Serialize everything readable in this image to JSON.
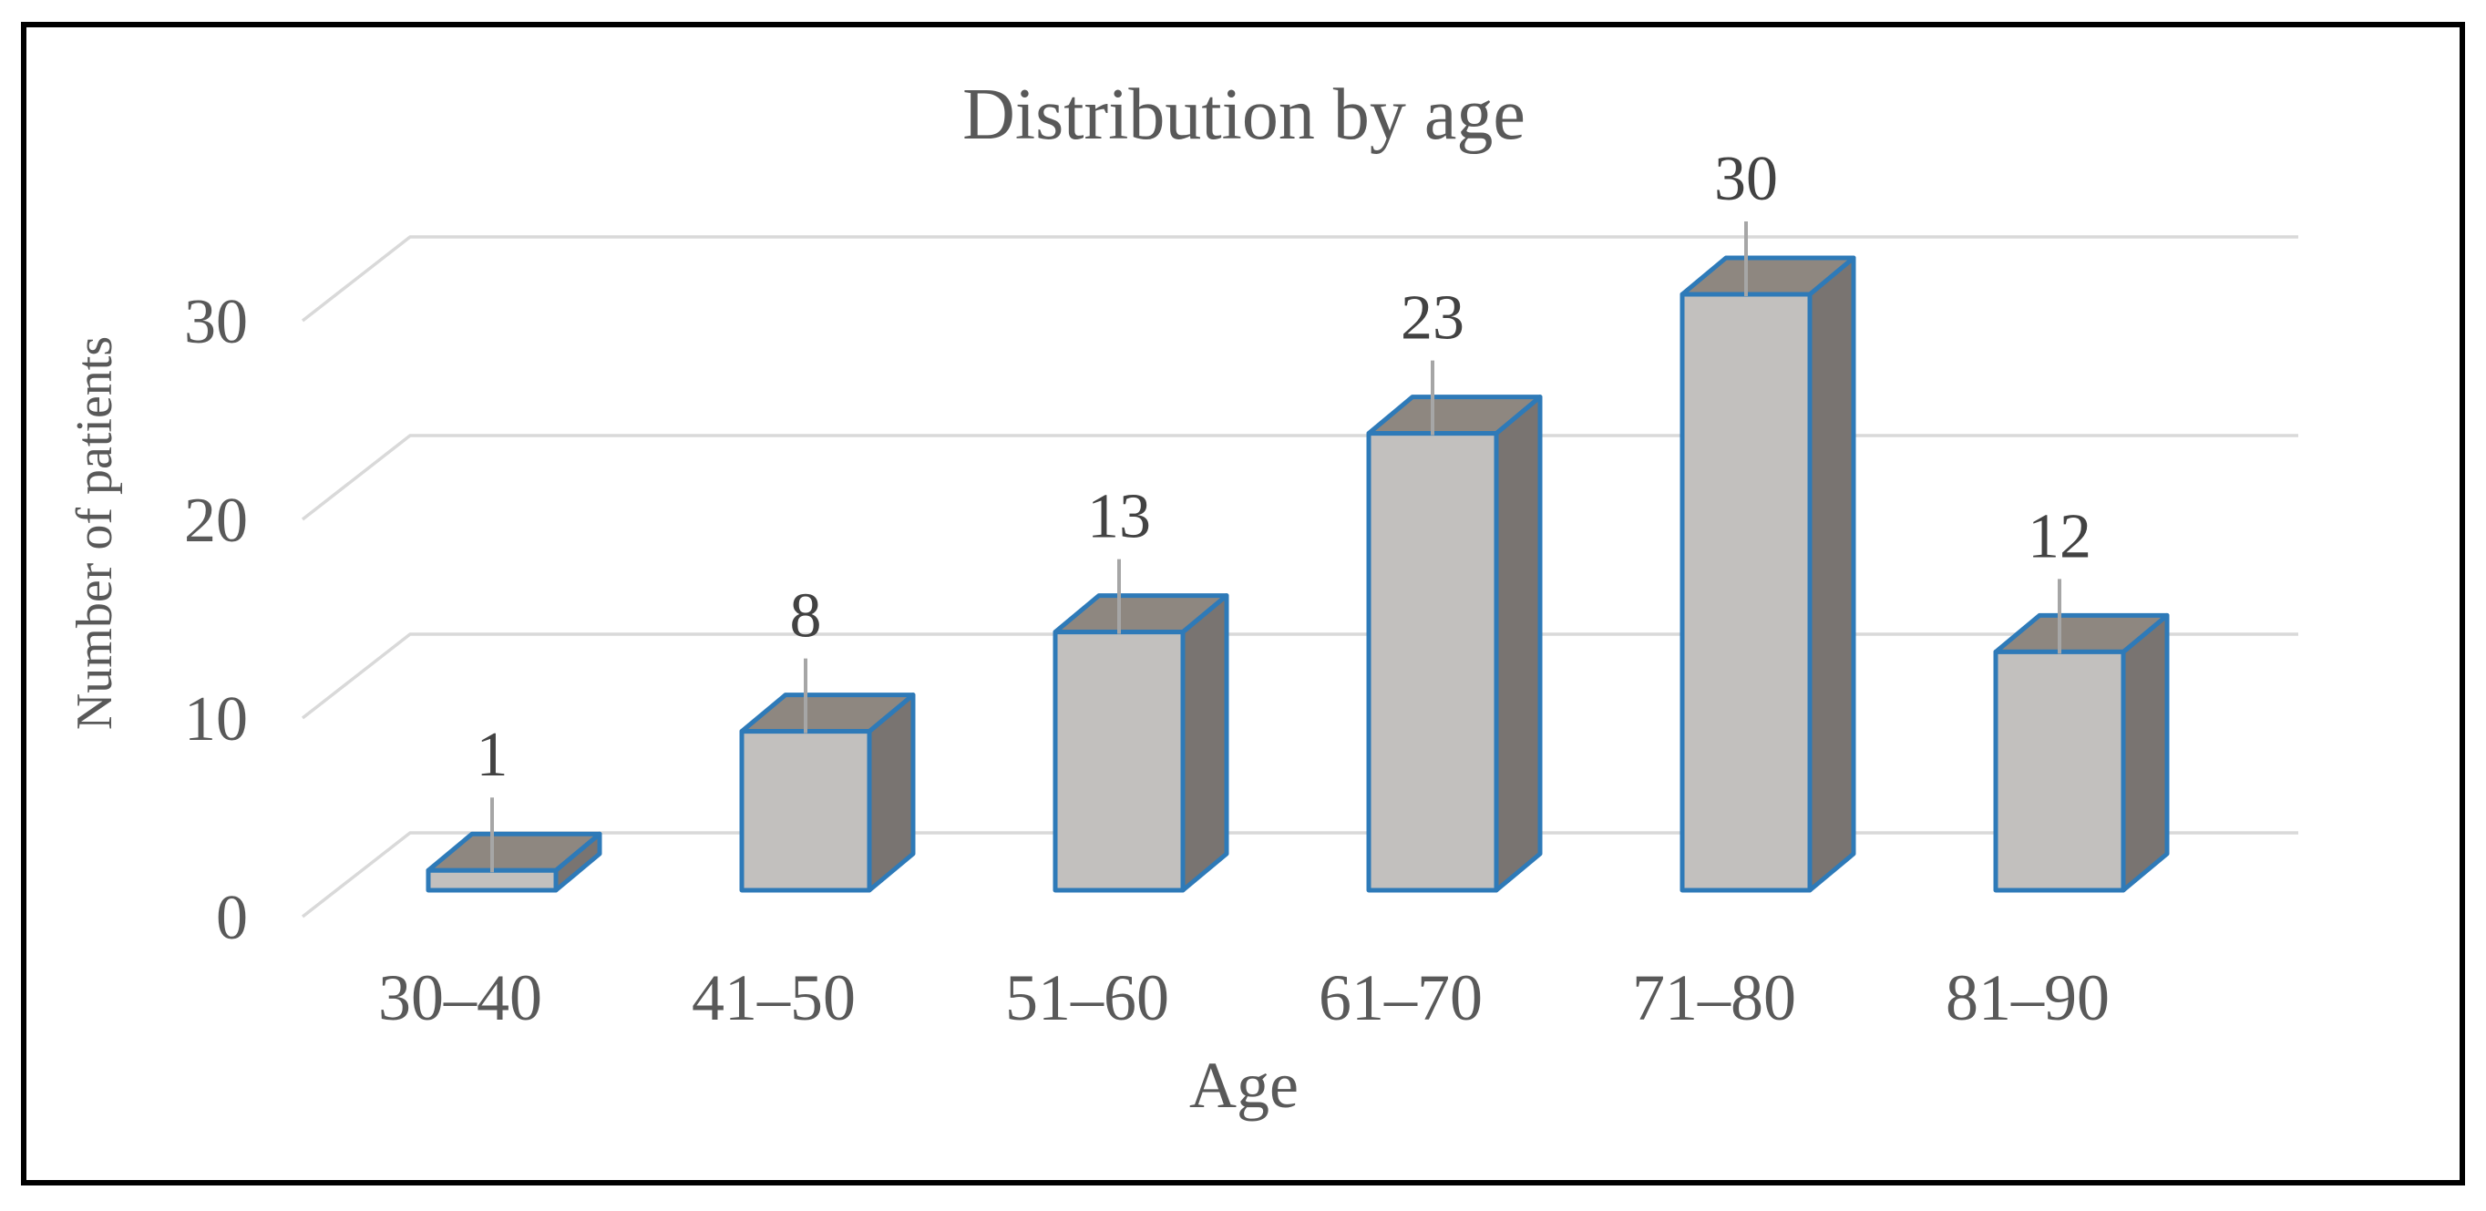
{
  "figure": {
    "description": "3D bar chart figure inside a black frame"
  },
  "chart_data": {
    "type": "bar",
    "style_3d": true,
    "title": "Distribution by age",
    "xlabel": "Age",
    "ylabel": "Number of patients",
    "categories": [
      "30–40",
      "41–50",
      "51–60",
      "61–70",
      "71–80",
      "81–90"
    ],
    "values": [
      1,
      8,
      13,
      23,
      30,
      12
    ],
    "data_labels": [
      "1",
      "8",
      "13",
      "23",
      "30",
      "12"
    ],
    "yticks": [
      0,
      10,
      20,
      30
    ],
    "ylim": [
      0,
      32
    ],
    "grid": true,
    "legend": false,
    "colors": {
      "bar_front": "#C2C0BE",
      "bar_top": "#8E8780",
      "bar_side": "#797471",
      "bar_border": "#2E7AB8",
      "gridline": "#D9D9D9",
      "leader_line": "#A6A6A6",
      "axis_text": "#595959",
      "data_label_text": "#424242",
      "frame_border": "#000000",
      "background": "#FFFFFF"
    }
  }
}
